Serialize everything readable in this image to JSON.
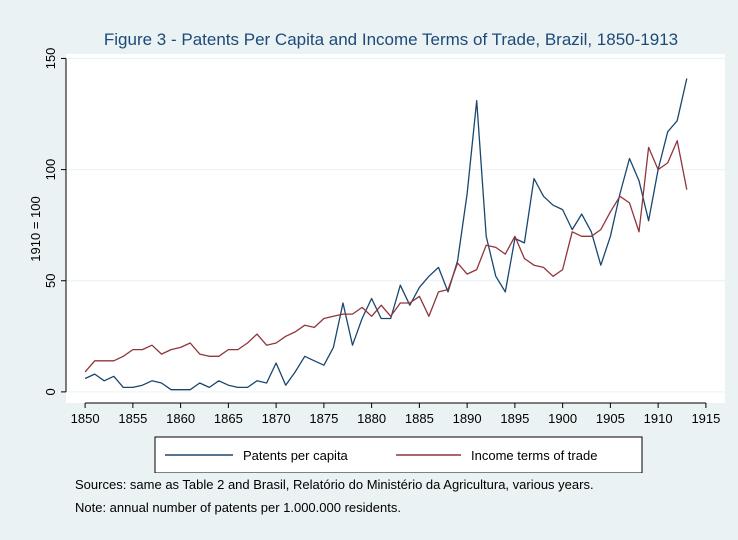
{
  "chart_data": {
    "type": "line",
    "title": "Figure 3 - Patents Per Capita and Income Terms of Trade, Brazil, 1850-1913",
    "xlabel": "",
    "ylabel": "1910 = 100",
    "xlim": [
      1848,
      1917
    ],
    "ylim": [
      -5,
      152
    ],
    "x_ticks": [
      1850,
      1855,
      1860,
      1865,
      1870,
      1875,
      1880,
      1885,
      1890,
      1895,
      1900,
      1905,
      1910,
      1915
    ],
    "y_ticks": [
      0,
      50,
      100,
      150
    ],
    "grid": "horizontal",
    "legend_placement": "bottom",
    "x": [
      1850,
      1851,
      1852,
      1853,
      1854,
      1855,
      1856,
      1857,
      1858,
      1859,
      1860,
      1861,
      1862,
      1863,
      1864,
      1865,
      1866,
      1867,
      1868,
      1869,
      1870,
      1871,
      1872,
      1873,
      1874,
      1875,
      1876,
      1877,
      1878,
      1879,
      1880,
      1881,
      1882,
      1883,
      1884,
      1885,
      1886,
      1887,
      1888,
      1889,
      1890,
      1891,
      1892,
      1893,
      1894,
      1895,
      1896,
      1897,
      1898,
      1899,
      1900,
      1901,
      1902,
      1903,
      1904,
      1905,
      1906,
      1907,
      1908,
      1909,
      1910,
      1911,
      1912,
      1913
    ],
    "series": [
      {
        "name": "Patents per capita",
        "color": "#1a476f",
        "values": [
          6,
          8,
          5,
          7,
          2,
          2,
          3,
          5,
          4,
          1,
          1,
          1,
          4,
          2,
          5,
          3,
          2,
          2,
          5,
          4,
          13,
          3,
          9,
          16,
          14,
          12,
          20,
          40,
          21,
          33,
          42,
          33,
          33,
          48,
          39,
          47,
          52,
          56,
          45,
          59,
          89,
          131,
          70,
          52,
          45,
          69,
          67,
          96,
          88,
          84,
          82,
          73,
          80,
          72,
          57,
          70,
          89,
          105,
          95,
          77,
          100,
          117,
          122,
          141
        ]
      },
      {
        "name": "Income terms of trade",
        "color": "#90353b",
        "values": [
          9,
          14,
          14,
          14,
          16,
          19,
          19,
          21,
          17,
          19,
          20,
          22,
          17,
          16,
          16,
          19,
          19,
          22,
          26,
          21,
          22,
          25,
          27,
          30,
          29,
          33,
          34,
          35,
          35,
          38,
          34,
          39,
          34,
          40,
          40,
          43,
          34,
          45,
          46,
          58,
          53,
          55,
          66,
          65,
          62,
          70,
          60,
          57,
          56,
          52,
          55,
          72,
          70,
          70,
          73,
          81,
          88,
          85,
          72,
          110,
          100,
          103,
          113,
          91
        ]
      }
    ]
  },
  "notes": {
    "sources": "Sources: same as Table 2 and Brasil, Relatório do Ministério da Agricultura, various years.",
    "note": "Note: annual number of patents per 1.000.000 residents."
  }
}
